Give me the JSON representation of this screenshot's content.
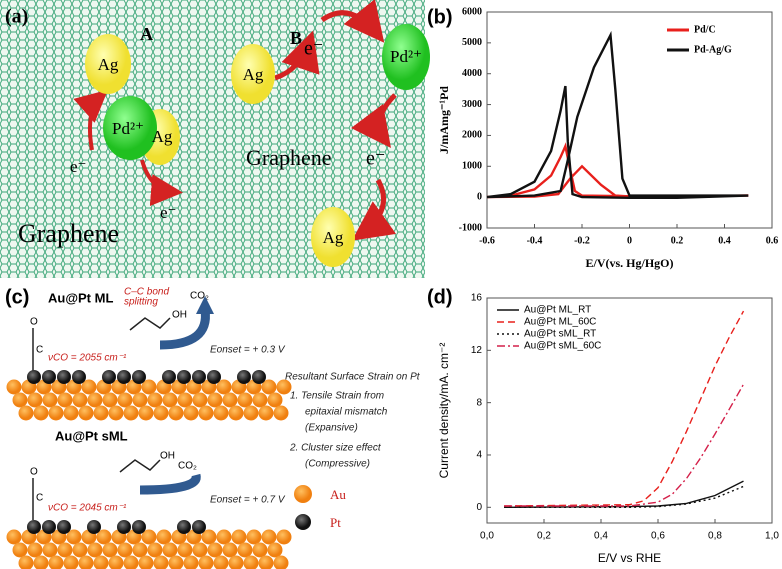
{
  "panel_labels": [
    "(a)",
    "(b)",
    "(c)",
    "(d)"
  ],
  "diagram_a": {
    "scheme_labels": [
      "A",
      "B"
    ],
    "ag": [
      "Ag",
      "Ag",
      "Ag",
      "Ag"
    ],
    "pd": [
      "Pd²⁺",
      "Pd²⁺"
    ],
    "electrons": [
      "e⁻",
      "e⁻",
      "e⁻",
      "e⁻"
    ],
    "support": [
      "Graphene",
      "Graphene"
    ]
  },
  "diagram_c": {
    "top": {
      "title": "Au@Pt ML",
      "note": [
        "C–C bond",
        "splitting"
      ],
      "product": "CO₂",
      "group": "OH",
      "atoms": [
        "O",
        "C"
      ],
      "nu": "νCO = 2055 cm⁻¹",
      "onset": "Eonset = + 0.3 V"
    },
    "bottom": {
      "title": "Au@Pt sML",
      "product": "CO₂",
      "group": "OH",
      "atoms": [
        "O",
        "C"
      ],
      "nu": "νCO = 2045 cm⁻¹",
      "onset": "Eonset = + 0.7 V"
    },
    "strain_notes": [
      "Resultant Surface Strain on Pt",
      "1.  Tensile Strain from",
      "epitaxial mismatch",
      "(Expansive)",
      "2.  Cluster size effect",
      "(Compressive)"
    ],
    "legend": [
      "Au",
      "Pt"
    ]
  },
  "chart_data": [
    {
      "type": "line",
      "xlabel": "E/V(vs. Hg/HgO)",
      "ylabel": "J/mAmg⁻¹Pd",
      "xlim": [
        -0.6,
        0.6
      ],
      "xticks": [
        -0.6,
        -0.4,
        -0.2,
        0,
        0.2,
        0.4,
        0.6
      ],
      "ylim": [
        -1000,
        6000
      ],
      "yticks": [
        -1000,
        0,
        1000,
        2000,
        3000,
        4000,
        5000,
        6000
      ],
      "legend": "upper right",
      "series": [
        {
          "name": "Pd/C",
          "color": "#e8201c",
          "linestyle": "solid",
          "x": [
            -0.6,
            -0.5,
            -0.4,
            -0.33,
            -0.29,
            -0.27,
            -0.25,
            -0.23,
            -0.2,
            0,
            0.2,
            0.5,
            0.2,
            0,
            -0.06,
            -0.12,
            -0.2,
            -0.25,
            -0.3,
            -0.4,
            -0.6
          ],
          "values": [
            0,
            50,
            250,
            700,
            1300,
            1650,
            900,
            200,
            50,
            30,
            30,
            50,
            20,
            20,
            50,
            400,
            1000,
            600,
            100,
            20,
            0
          ]
        },
        {
          "name": "Pd-Ag/G",
          "color": "#111111",
          "linestyle": "solid",
          "x": [
            -0.6,
            -0.5,
            -0.4,
            -0.33,
            -0.29,
            -0.27,
            -0.26,
            -0.24,
            -0.2,
            0,
            0.2,
            0.5,
            0.2,
            0,
            -0.03,
            -0.06,
            -0.08,
            -0.15,
            -0.22,
            -0.26,
            -0.29,
            -0.4,
            -0.6
          ],
          "values": [
            0,
            100,
            500,
            1500,
            2800,
            3600,
            1800,
            100,
            0,
            -20,
            -20,
            50,
            50,
            50,
            600,
            3500,
            5250,
            4200,
            2600,
            1200,
            200,
            50,
            0
          ]
        }
      ]
    },
    {
      "type": "line",
      "xlabel": "E/V vs RHE",
      "ylabel": "Current density/mA. cm⁻²",
      "xlim": [
        0,
        1
      ],
      "xticks": [
        {
          "value": 0,
          "label": "0,0"
        },
        {
          "value": 0.2,
          "label": "0,2"
        },
        {
          "value": 0.4,
          "label": "0,4"
        },
        {
          "value": 0.6,
          "label": "0,6"
        },
        {
          "value": 0.8,
          "label": "0,8"
        },
        {
          "value": 1,
          "label": "1,0"
        }
      ],
      "ylim": [
        -1.2,
        16
      ],
      "yticks": [
        0,
        4,
        8,
        12,
        16
      ],
      "legend": "upper left",
      "series": [
        {
          "name": "Au@Pt ML_RT",
          "color": "#111111",
          "linestyle": "solid",
          "x": [
            0.06,
            0.5,
            0.6,
            0.7,
            0.8,
            0.9
          ],
          "values": [
            0,
            0.05,
            0.1,
            0.3,
            0.9,
            2.0
          ]
        },
        {
          "name": "Au@Pt ML_60C",
          "color": "#e8201c",
          "linestyle": "dashed",
          "x": [
            0.06,
            0.5,
            0.55,
            0.6,
            0.65,
            0.7,
            0.75,
            0.8,
            0.85,
            0.9
          ],
          "values": [
            0.1,
            0.2,
            0.5,
            1.5,
            3.5,
            5.8,
            8.3,
            10.8,
            13,
            15
          ]
        },
        {
          "name": "Au@Pt sML_RT",
          "color": "#111111",
          "linestyle": "dotted",
          "x": [
            0.06,
            0.5,
            0.6,
            0.7,
            0.8,
            0.9
          ],
          "values": [
            0,
            0,
            0.05,
            0.25,
            0.7,
            1.6
          ]
        },
        {
          "name": "Au@Pt sML_60C",
          "color": "#d4204a",
          "linestyle": "dashdot",
          "x": [
            0.06,
            0.5,
            0.6,
            0.65,
            0.7,
            0.75,
            0.8,
            0.85,
            0.9
          ],
          "values": [
            0.1,
            0.1,
            0.4,
            1.0,
            2.2,
            3.8,
            5.6,
            7.5,
            9.4
          ]
        }
      ]
    }
  ]
}
